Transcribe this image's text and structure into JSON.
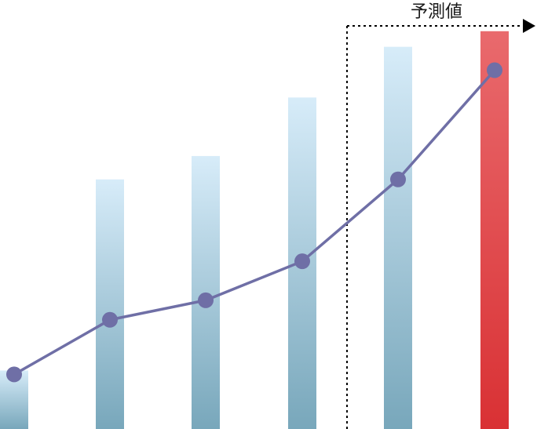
{
  "chart_data": {
    "type": "bar",
    "categories": [
      "",
      "",
      "",
      "",
      "",
      ""
    ],
    "series": [
      {
        "type": "bar",
        "values": [
          15,
          64,
          70,
          85,
          98,
          102
        ]
      },
      {
        "type": "line",
        "values": [
          14,
          28,
          33,
          43,
          64,
          92
        ]
      }
    ],
    "ylim": [
      0,
      110
    ],
    "grid": false,
    "forecast_annotation": {
      "label": "予測値",
      "starts_at_category_index": 4
    }
  },
  "colors": {
    "bar_gradient_top": "#d7ecf9",
    "bar_gradient_bottom": "#78a7bb",
    "forecast_bar_top": "#e96a6d",
    "forecast_bar_bottom": "#d93134",
    "line": "#6f6fa6",
    "marker": "#6f6fa6",
    "annotation": "#000000"
  }
}
